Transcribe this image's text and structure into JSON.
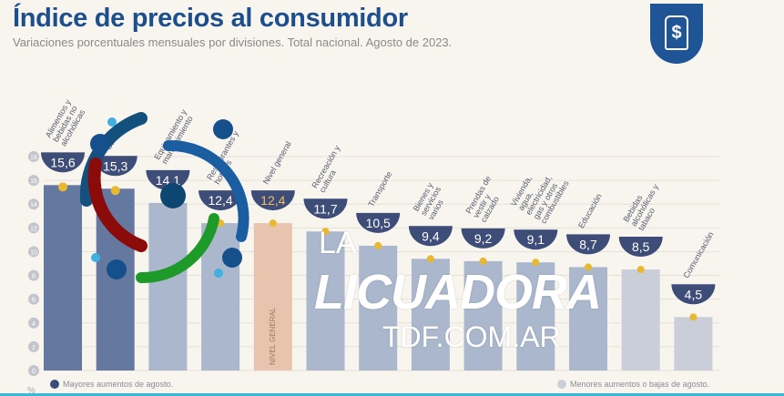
{
  "header": {
    "title": "Índice de precios al consumidor",
    "subtitle": "Variaciones porcentuales mensuales por divisiones. Total nacional. Agosto de 2023.",
    "logo_symbol": "$"
  },
  "colors": {
    "high": "#6578a0",
    "mid": "#aab7cc",
    "low": "#c9ced8",
    "general": "#e8c3ad",
    "bowl": "#3e4d78",
    "accent": "#e8b830"
  },
  "chart_data": {
    "type": "bar",
    "title": "Índice de precios al consumidor",
    "ylabel": "%",
    "ylim": [
      0,
      18
    ],
    "yticks": [
      0,
      2,
      4,
      6,
      8,
      10,
      12,
      14,
      16,
      18
    ],
    "categories": [
      "Alimentos y bebidas no alcohólicas",
      "Salud",
      "Equipamiento y mantenimiento",
      "Restaurantes y hoteles",
      "Nivel general",
      "Recreación y cultura",
      "Transporte",
      "Bienes y servicios varios",
      "Prendas de vestir y calzado",
      "Vivienda, agua, electricidad, gas y otros combustibles",
      "Educación",
      "Bebidas alcohólicas y tabaco",
      "Comunicación"
    ],
    "values": [
      15.6,
      15.3,
      14.1,
      12.4,
      12.4,
      11.7,
      10.5,
      9.4,
      9.2,
      9.1,
      8.7,
      8.5,
      4.5
    ],
    "labels": [
      "15,6",
      "15,3",
      "14,1",
      "12,4",
      "12,4",
      "11,7",
      "10,5",
      "9,4",
      "9,2",
      "9,1",
      "8,7",
      "8,5",
      "4,5"
    ],
    "groups": [
      "high",
      "high",
      "mid",
      "mid",
      "general",
      "mid",
      "mid",
      "mid",
      "mid",
      "mid",
      "mid",
      "low",
      "low"
    ],
    "general_bar_text": "NIVEL GENERAL",
    "legend": [
      {
        "label": "Mayores aumentos de agosto.",
        "group": "high"
      },
      {
        "label": "Menores aumentos o bajas de agosto.",
        "group": "low"
      }
    ]
  },
  "watermark": {
    "line1": "LA",
    "line2": "LICUADORA",
    "line3": "TDF.COM.AR"
  }
}
